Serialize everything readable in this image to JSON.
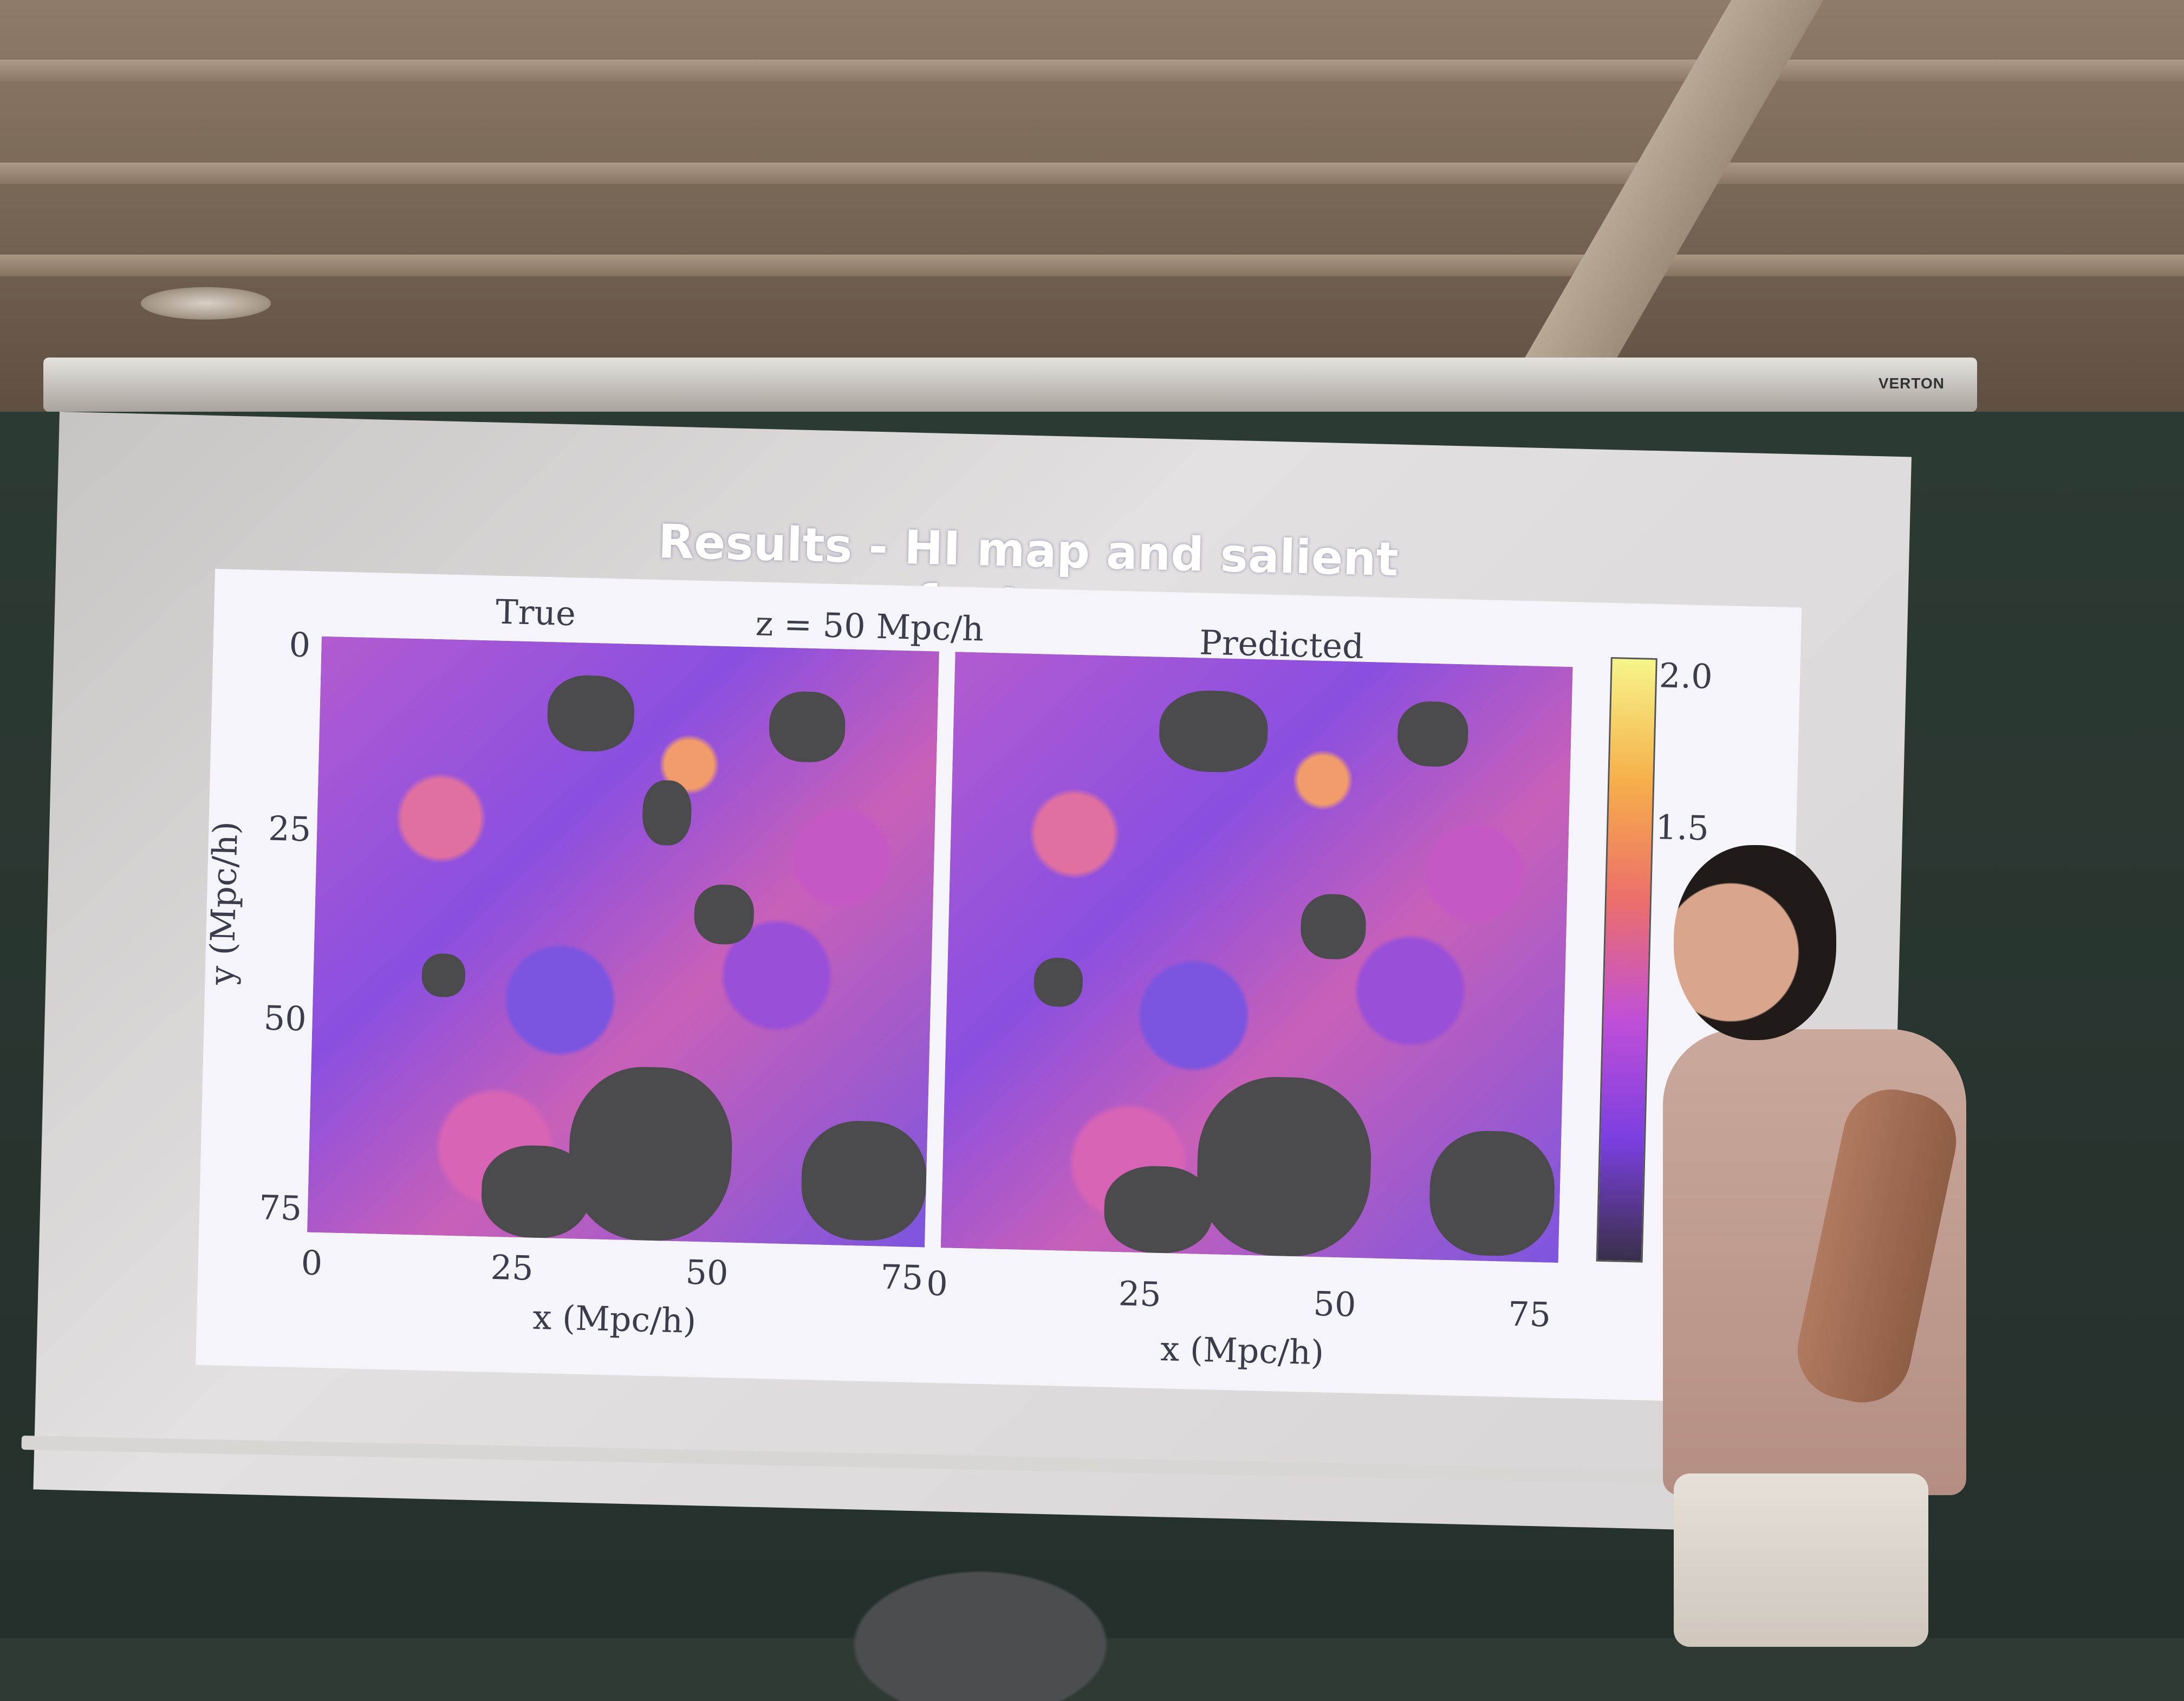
{
  "slide": {
    "title": "Results - HI map and salient features",
    "center_label": "z = 50 Mpc/h",
    "colorbar": {
      "ticks": [
        "2.0",
        "1.5"
      ],
      "colors": [
        "#f6f58a",
        "#f6b04a",
        "#ec6f6a",
        "#c04fd8",
        "#7b3fe0",
        "#39304a"
      ]
    },
    "panels": [
      {
        "title": "True",
        "x_ticks": [
          "0",
          "25",
          "50",
          "75"
        ],
        "y_ticks": [
          "0",
          "25",
          "50",
          "75"
        ],
        "xlabel": "x (Mpc/h)",
        "ylabel": "y (Mpc/h)"
      },
      {
        "title": "Predicted",
        "x_ticks": [
          "0",
          "25",
          "50",
          "75"
        ],
        "xlabel": "x (Mpc/h)"
      }
    ]
  },
  "screen_brand": "VERTON"
}
